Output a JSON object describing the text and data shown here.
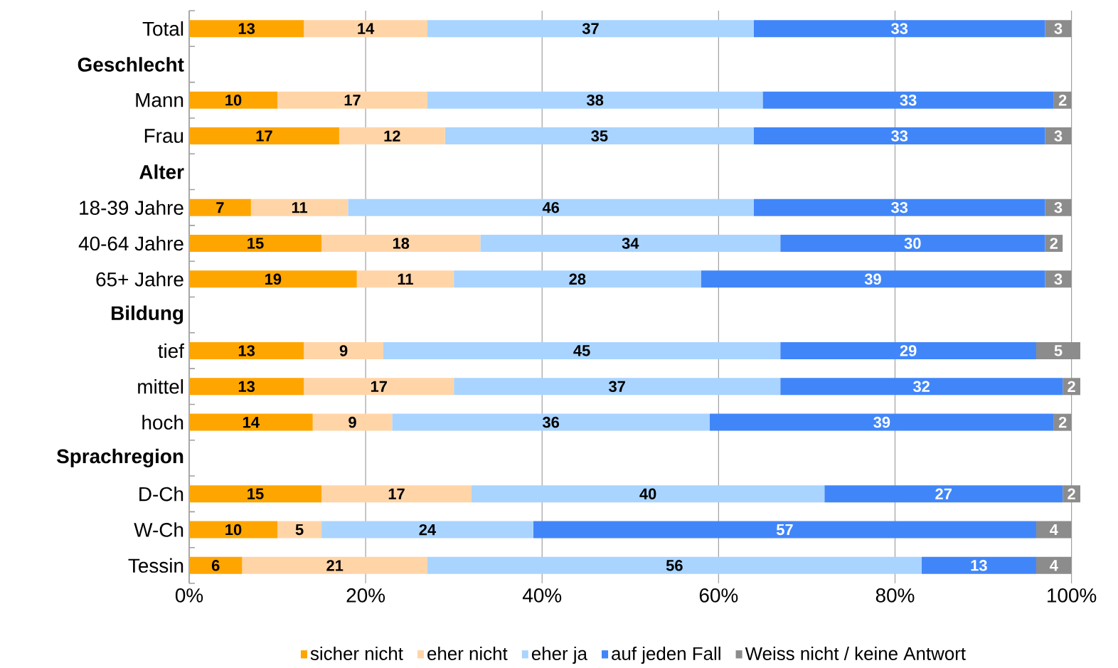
{
  "chart_data": {
    "type": "bar",
    "orientation": "horizontal",
    "stacked": true,
    "categories": [
      "Total",
      "**Geschlecht**",
      "Mann",
      "Frau",
      "**Alter**",
      "18-39 Jahre",
      "40-64 Jahre",
      "65+ Jahre",
      "**Bildung**",
      "tief",
      "mittel",
      "hoch",
      "**Sprachregion**",
      "D-Ch",
      "W-Ch",
      "Tessin"
    ],
    "series": [
      {
        "name": "sicher nicht",
        "color": "#ffa500",
        "values": [
          13,
          null,
          10,
          17,
          null,
          7,
          15,
          19,
          null,
          13,
          13,
          14,
          null,
          15,
          10,
          6
        ]
      },
      {
        "name": "eher nicht",
        "color": "#ffd5a8",
        "values": [
          14,
          null,
          17,
          12,
          null,
          11,
          18,
          11,
          null,
          9,
          17,
          9,
          null,
          17,
          5,
          21
        ]
      },
      {
        "name": "eher ja",
        "color": "#a9d4ff",
        "values": [
          37,
          null,
          38,
          35,
          null,
          46,
          34,
          28,
          null,
          45,
          37,
          36,
          null,
          40,
          24,
          56
        ]
      },
      {
        "name": "auf jeden Fall",
        "color": "#4186f9",
        "values": [
          33,
          null,
          33,
          33,
          null,
          33,
          30,
          39,
          null,
          29,
          32,
          39,
          null,
          27,
          57,
          13
        ]
      },
      {
        "name": "Weiss nicht / keine Antwort",
        "color": "#8c8c8c",
        "values": [
          3,
          null,
          2,
          3,
          null,
          3,
          2,
          3,
          null,
          5,
          2,
          2,
          null,
          2,
          4,
          4
        ]
      }
    ],
    "xlim": [
      0,
      101
    ],
    "xticks": [
      {
        "value": 0,
        "label": "0%"
      },
      {
        "value": 20,
        "label": "20%"
      },
      {
        "value": 40,
        "label": "40%"
      },
      {
        "value": 60,
        "label": "60%"
      },
      {
        "value": 80,
        "label": "80%"
      },
      {
        "value": 100,
        "label": "100%"
      }
    ],
    "grid": "x",
    "legend": "bottom",
    "data_labels": true
  }
}
